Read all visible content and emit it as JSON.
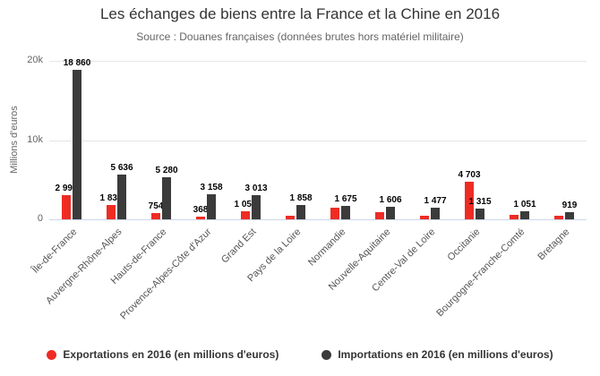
{
  "chart_data": {
    "type": "bar",
    "title": "Les échanges de biens entre la France et la Chine en 2016",
    "subtitle": "Source : Douanes françaises (données brutes hors matériel militaire)",
    "ylabel": "Millions d'euros",
    "xlabel": "",
    "ylim": [
      0,
      20000
    ],
    "grid": true,
    "legend_position": "bottom",
    "yticks": [
      {
        "value": 0,
        "label": "0"
      },
      {
        "value": 10000,
        "label": "10k"
      },
      {
        "value": 20000,
        "label": "20k"
      }
    ],
    "categories": [
      "Île-de-France",
      "Auvergne-Rhône-Alpes",
      "Hauts-de-France",
      "Provence-Alpes-Côte d'Azur",
      "Grand Est",
      "Pays de la Loire",
      "Normandie",
      "Nouvelle-Aquitaine",
      "Centre-Val de Loire",
      "Occitanie",
      "Bourgogne-Franche-Comté",
      "Bretagne"
    ],
    "series": [
      {
        "name": "Exportations en 2016 (en millions d'euros)",
        "color": "#ee2c24",
        "values": [
          2997,
          1835,
          754,
          368,
          1050,
          500,
          1450,
          900,
          480,
          4703,
          550,
          450
        ],
        "labels": [
          "2 997",
          "1 835",
          "754",
          "368",
          "1 050",
          null,
          null,
          null,
          null,
          "4 703",
          null,
          null
        ]
      },
      {
        "name": "Importations en 2016 (en millions d'euros)",
        "color": "#3b3b3b",
        "values": [
          18860,
          5636,
          5280,
          3158,
          3013,
          1858,
          1675,
          1606,
          1477,
          1315,
          1051,
          919
        ],
        "labels": [
          "18 860",
          "5 636",
          "5 280",
          "3 158",
          "3 013",
          "1 858",
          "1 675",
          "1 606",
          "1 477",
          "1 315",
          "1 051",
          "919"
        ]
      }
    ]
  }
}
